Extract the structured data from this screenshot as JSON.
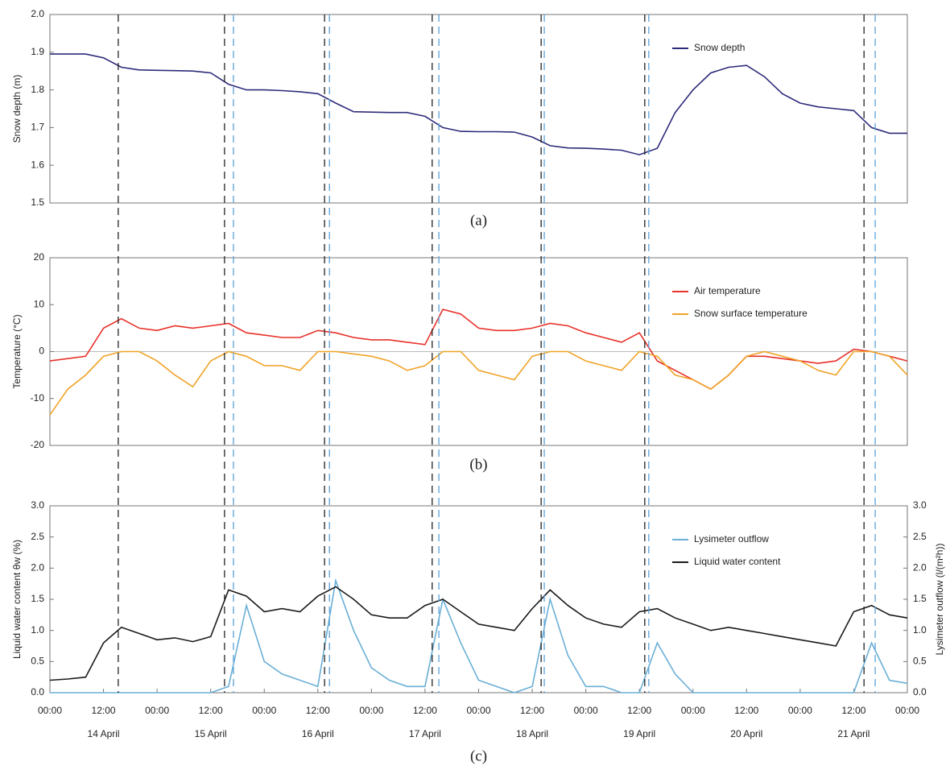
{
  "chart_data": [
    {
      "type": "line",
      "panel_label": "(a)",
      "ylabel": "Snow depth (m)",
      "ylim": [
        1.5,
        2.0
      ],
      "yticks": [
        1.5,
        1.6,
        1.7,
        1.8,
        1.9,
        {
          "value": 2,
          "label": "2.0"
        }
      ],
      "xlim": [
        0,
        192
      ],
      "x": [
        0,
        4,
        8,
        12,
        16,
        20,
        24,
        28,
        32,
        36,
        40,
        44,
        48,
        52,
        56,
        60,
        64,
        68,
        72,
        76,
        80,
        84,
        88,
        92,
        96,
        100,
        104,
        108,
        112,
        116,
        120,
        124,
        128,
        132,
        136,
        140,
        144,
        148,
        152,
        156,
        160,
        164,
        168,
        172,
        176,
        180,
        184,
        188,
        192
      ],
      "series": [
        {
          "name": "Snow depth",
          "color": "#2e2b7a",
          "values": [
            1.895,
            1.895,
            1.895,
            1.885,
            1.86,
            1.853,
            1.852,
            1.851,
            1.85,
            1.845,
            1.815,
            1.8,
            1.8,
            1.798,
            1.795,
            1.79,
            1.765,
            1.742,
            1.741,
            1.74,
            1.74,
            1.73,
            1.7,
            1.69,
            1.689,
            1.689,
            1.688,
            1.675,
            1.652,
            1.646,
            1.645,
            1.643,
            1.64,
            1.628,
            1.645,
            1.74,
            1.8,
            1.845,
            1.86,
            1.865,
            1.835,
            1.79,
            1.765,
            1.755,
            1.75,
            1.745,
            1.7,
            1.685,
            1.685
          ]
        }
      ]
    },
    {
      "type": "line",
      "panel_label": "(b)",
      "ylabel": "Temperature (°C)",
      "ylim": [
        -20,
        20
      ],
      "yticks": [
        -20,
        -10,
        0,
        10,
        20
      ],
      "hline": 0,
      "xlim": [
        0,
        192
      ],
      "x": [
        0,
        4,
        8,
        12,
        16,
        20,
        24,
        28,
        32,
        36,
        40,
        44,
        48,
        52,
        56,
        60,
        64,
        68,
        72,
        76,
        80,
        84,
        88,
        92,
        96,
        100,
        104,
        108,
        112,
        116,
        120,
        124,
        128,
        132,
        136,
        140,
        144,
        148,
        152,
        156,
        160,
        164,
        168,
        172,
        176,
        180,
        184,
        188,
        192
      ],
      "series": [
        {
          "name": "Air temperature",
          "color": "#e8312a",
          "values": [
            -2,
            -1.5,
            -1,
            5,
            7,
            5,
            4.5,
            5.5,
            5,
            5.5,
            6,
            4,
            3.5,
            3,
            3,
            4.5,
            4,
            3,
            2.5,
            2.5,
            2,
            1.5,
            9,
            8,
            5,
            4.5,
            4.5,
            5,
            6,
            5.5,
            4,
            3,
            2,
            4,
            -2,
            -4,
            -6,
            -8,
            -5,
            -1,
            -1,
            -1.5,
            -2,
            -2.5,
            -2,
            0.5,
            0,
            -1,
            -2
          ]
        },
        {
          "name": "Snow surface temperature",
          "color": "#f0a326",
          "values": [
            -13.5,
            -8,
            -5,
            -1,
            0,
            0,
            -2,
            -5,
            -7.5,
            -2,
            0,
            -1,
            -3,
            -3,
            -4,
            0,
            0,
            -0.5,
            -1,
            -2,
            -4,
            -3,
            0,
            0,
            -4,
            -5,
            -6,
            -1,
            0,
            0,
            -2,
            -3,
            -4,
            0,
            -1,
            -5,
            -6,
            -8,
            -5,
            -1,
            0,
            -1,
            -2,
            -4,
            -5,
            0,
            0,
            -1,
            -5
          ]
        }
      ]
    },
    {
      "type": "line",
      "panel_label": "(c)",
      "ylabel": "Liquid water content θw (%)",
      "y2label": "Lysimeter outflow (l/(m²h))",
      "ylim": [
        0,
        3
      ],
      "yticks": [
        {
          "value": 0,
          "label": "0.0"
        },
        0.5,
        {
          "value": 1,
          "label": "1.0"
        },
        1.5,
        {
          "value": 2,
          "label": "2.0"
        },
        2.5,
        {
          "value": 3,
          "label": "3.0"
        }
      ],
      "y2lim": [
        0,
        3
      ],
      "y2ticks": [
        {
          "value": 0,
          "label": "0.0"
        },
        0.5,
        {
          "value": 1,
          "label": "1.0"
        },
        1.5,
        {
          "value": 2,
          "label": "2.0"
        },
        2.5,
        {
          "value": 3,
          "label": "3.0"
        }
      ],
      "xlim": [
        0,
        192
      ],
      "xticks": [
        {
          "value": 0,
          "label": "00:00"
        },
        {
          "value": 12,
          "label": "12:00"
        },
        {
          "value": 24,
          "label": "00:00"
        },
        {
          "value": 36,
          "label": "12:00"
        },
        {
          "value": 48,
          "label": "00:00"
        },
        {
          "value": 60,
          "label": "12:00"
        },
        {
          "value": 72,
          "label": "00:00"
        },
        {
          "value": 84,
          "label": "12:00"
        },
        {
          "value": 96,
          "label": "00:00"
        },
        {
          "value": 108,
          "label": "12:00"
        },
        {
          "value": 120,
          "label": "00:00"
        },
        {
          "value": 132,
          "label": "12:00"
        },
        {
          "value": 144,
          "label": "00:00"
        },
        {
          "value": 156,
          "label": "12:00"
        },
        {
          "value": 168,
          "label": "00:00"
        },
        {
          "value": 180,
          "label": "12:00"
        },
        {
          "value": 192,
          "label": "00:00"
        }
      ],
      "date_labels": [
        {
          "value": 12,
          "label": "14 April"
        },
        {
          "value": 36,
          "label": "15 April"
        },
        {
          "value": 60,
          "label": "16 April"
        },
        {
          "value": 84,
          "label": "17 April"
        },
        {
          "value": 108,
          "label": "18 April"
        },
        {
          "value": 132,
          "label": "19 April"
        },
        {
          "value": 156,
          "label": "20 April"
        },
        {
          "value": 180,
          "label": "21 April"
        }
      ],
      "x": [
        0,
        4,
        8,
        12,
        16,
        20,
        24,
        28,
        32,
        36,
        40,
        44,
        48,
        52,
        56,
        60,
        64,
        68,
        72,
        76,
        80,
        84,
        88,
        92,
        96,
        100,
        104,
        108,
        112,
        116,
        120,
        124,
        128,
        132,
        136,
        140,
        144,
        148,
        152,
        156,
        160,
        164,
        168,
        172,
        176,
        180,
        184,
        188,
        192
      ],
      "series": [
        {
          "name": "Lysimeter outflow",
          "color": "#6aafd6",
          "axis": "y2",
          "values": [
            0,
            0,
            0,
            0,
            0,
            0,
            0,
            0,
            0,
            0,
            0.1,
            1.4,
            0.5,
            0.3,
            0.2,
            0.1,
            1.8,
            1.0,
            0.4,
            0.2,
            0.1,
            0.1,
            1.5,
            0.8,
            0.2,
            0.1,
            0,
            0.1,
            1.5,
            0.6,
            0.1,
            0.1,
            0,
            0,
            0.8,
            0.3,
            0,
            0,
            0,
            0,
            0,
            0,
            0,
            0,
            0,
            0,
            0.8,
            0.2,
            0.15
          ]
        },
        {
          "name": "Liquid water content",
          "color": "#1a1a1a",
          "values": [
            0.2,
            0.22,
            0.25,
            0.8,
            1.05,
            0.95,
            0.85,
            0.88,
            0.82,
            0.9,
            1.65,
            1.55,
            1.3,
            1.35,
            1.3,
            1.55,
            1.7,
            1.5,
            1.25,
            1.2,
            1.2,
            1.4,
            1.5,
            1.3,
            1.1,
            1.05,
            1.0,
            1.35,
            1.65,
            1.4,
            1.2,
            1.1,
            1.05,
            1.3,
            1.35,
            1.2,
            1.1,
            1.0,
            1.05,
            1.0,
            0.95,
            0.9,
            0.85,
            0.8,
            0.75,
            1.3,
            1.4,
            1.25,
            1.2
          ]
        }
      ]
    }
  ],
  "event_lines": [
    {
      "color": "#222222",
      "x": [
        15.3,
        39.1,
        61.5,
        85.6,
        110,
        133.2,
        182.3
      ]
    },
    {
      "color": "#5aa0d8",
      "x": [
        41.1,
        62.6,
        87.1,
        110.7,
        134.1,
        184.8
      ]
    }
  ]
}
